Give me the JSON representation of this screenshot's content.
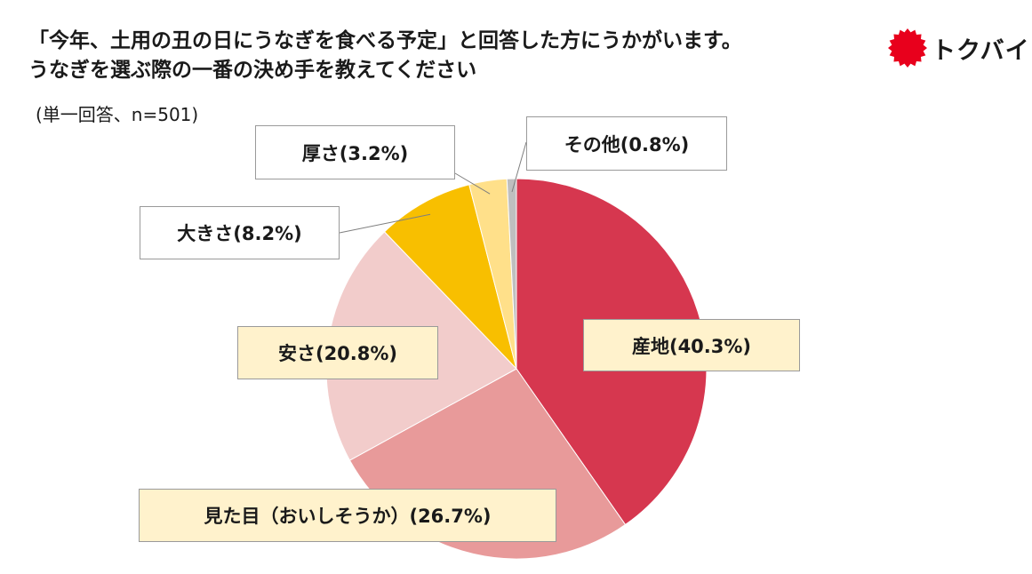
{
  "header": {
    "title_line1": "「今年、土用の丑の日にうなぎを食べる予定」と回答した方にうかがいます。",
    "title_line2": "うなぎを選ぶ際の一番の決め手を教えてください",
    "subtitle": "(単一回答、n=501)"
  },
  "logo": {
    "text": "トクバイ",
    "color": "#e8001c"
  },
  "chart_data": {
    "type": "pie",
    "slices": [
      {
        "label": "産地",
        "value": 40.3,
        "display": "産地(40.3%)",
        "color": "#d6374f"
      },
      {
        "label": "見た目（おいしそうか）",
        "value": 26.7,
        "display": "見た目（おいしそうか）(26.7%)",
        "color": "#e89a9a"
      },
      {
        "label": "安さ",
        "value": 20.8,
        "display": "安さ(20.8%)",
        "color": "#f2cccb"
      },
      {
        "label": "大きさ",
        "value": 8.2,
        "display": "大きさ(8.2%)",
        "color": "#f8bf00"
      },
      {
        "label": "厚さ",
        "value": 3.2,
        "display": "厚さ(3.2%)",
        "color": "#ffe08a"
      },
      {
        "label": "その他",
        "value": 0.8,
        "display": "その他(0.8%)",
        "color": "#bfbfbf"
      }
    ],
    "start": "12 o'clock",
    "direction": "clockwise",
    "legend": "none"
  }
}
